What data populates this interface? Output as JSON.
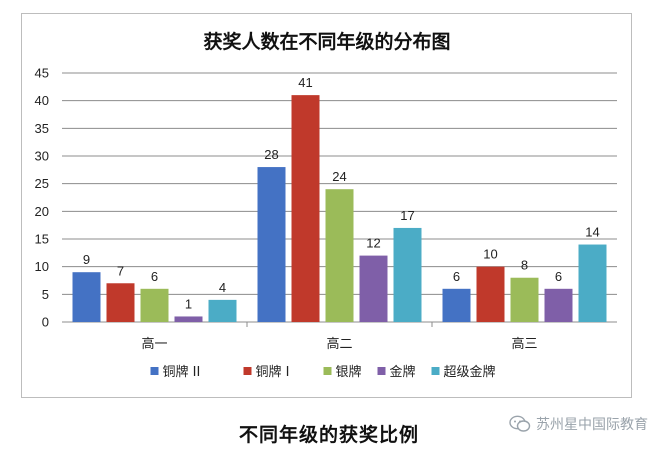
{
  "chart_data": {
    "type": "bar",
    "title": "获奖人数在不同年级的分布图",
    "categories": [
      "高一",
      "高二",
      "高三"
    ],
    "ylim": [
      0,
      45
    ],
    "yticks": [
      0,
      5,
      10,
      15,
      20,
      25,
      30,
      35,
      40,
      45
    ],
    "grid": true,
    "legend_position": "bottom",
    "series": [
      {
        "name": "铜牌 II",
        "color": "#4472c4",
        "values": [
          9,
          28,
          6
        ]
      },
      {
        "name": "铜牌 I",
        "color": "#c0392b",
        "values": [
          7,
          41,
          10
        ]
      },
      {
        "name": "银牌",
        "color": "#9bbb59",
        "values": [
          6,
          24,
          8
        ]
      },
      {
        "name": "金牌",
        "color": "#7f5fa8",
        "values": [
          1,
          12,
          6
        ]
      },
      {
        "name": "超级金牌",
        "color": "#4bacc6",
        "values": [
          4,
          17,
          14
        ]
      }
    ]
  },
  "caption": "不同年级的获奖比例",
  "watermark": {
    "text": "苏州星中国际教育",
    "icon": "wechat-icon"
  }
}
